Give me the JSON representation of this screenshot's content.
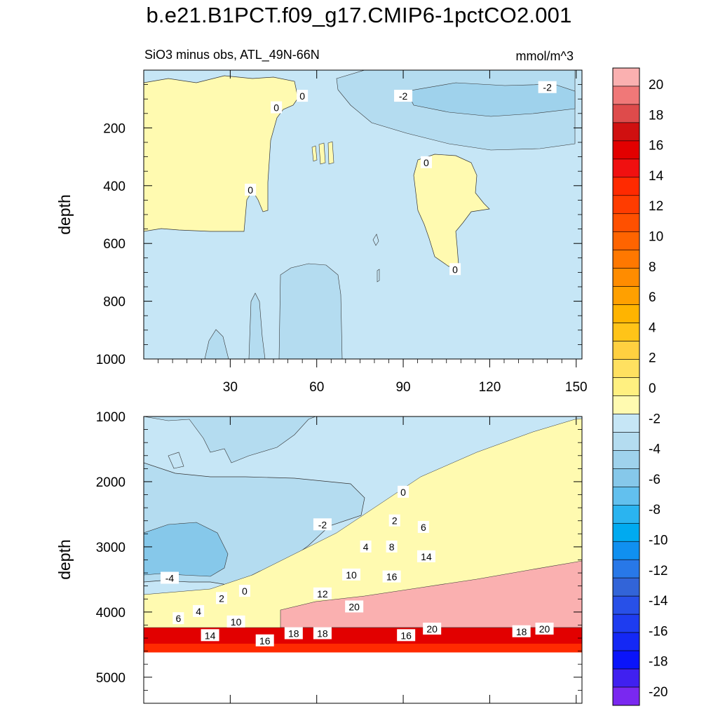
{
  "title": "b.e21.B1PCT.f09_g17.CMIP6-1pctCO2.001",
  "chart_data": [
    {
      "type": "heatmap",
      "panel": "upper",
      "subtitle_left": "SiO3 minus obs, ATL_49N-66N",
      "subtitle_right": "mmol/m^3",
      "ylabel": "depth",
      "xlabel": "",
      "x_range": [
        0,
        152
      ],
      "y_range": [
        0,
        1000
      ],
      "y_reversed": true,
      "x_ticks": [
        30,
        60,
        90,
        120,
        150
      ],
      "y_ticks": [
        200,
        400,
        600,
        800,
        1000
      ],
      "contour_labels": [
        {
          "text": "0",
          "x": 55,
          "y": 90
        },
        {
          "text": "0",
          "x": 46,
          "y": 130
        },
        {
          "text": "-2",
          "x": 90,
          "y": 90
        },
        {
          "text": "-2",
          "x": 140,
          "y": 60
        },
        {
          "text": "0",
          "x": 98,
          "y": 320
        },
        {
          "text": "0",
          "x": 37,
          "y": 415
        },
        {
          "text": "0",
          "x": 108,
          "y": 690
        }
      ]
    },
    {
      "type": "heatmap",
      "panel": "lower",
      "ylabel": "depth",
      "xlabel": "",
      "x_range": [
        0,
        152
      ],
      "y_range": [
        1000,
        5400
      ],
      "y_reversed": true,
      "y_ticks": [
        1000,
        2000,
        3000,
        4000,
        5000
      ],
      "x_ticks_unlabeled": [
        30,
        60,
        90,
        120,
        150
      ],
      "contour_labels": [
        {
          "text": "0",
          "x": 90,
          "y": 2160
        },
        {
          "text": "-2",
          "x": 62,
          "y": 2660
        },
        {
          "text": "2",
          "x": 87,
          "y": 2600
        },
        {
          "text": "6",
          "x": 97,
          "y": 2700
        },
        {
          "text": "4",
          "x": 77,
          "y": 3000
        },
        {
          "text": "8",
          "x": 86,
          "y": 3000
        },
        {
          "text": "14",
          "x": 98,
          "y": 3150
        },
        {
          "text": "10",
          "x": 72,
          "y": 3430
        },
        {
          "text": "16",
          "x": 86,
          "y": 3460
        },
        {
          "text": "-4",
          "x": 9,
          "y": 3480
        },
        {
          "text": "12",
          "x": 62,
          "y": 3720
        },
        {
          "text": "0",
          "x": 35,
          "y": 3680
        },
        {
          "text": "2",
          "x": 27,
          "y": 3790
        },
        {
          "text": "20",
          "x": 73,
          "y": 3920
        },
        {
          "text": "4",
          "x": 19,
          "y": 3990
        },
        {
          "text": "6",
          "x": 12,
          "y": 4100
        },
        {
          "text": "10",
          "x": 32,
          "y": 4150
        },
        {
          "text": "18",
          "x": 52,
          "y": 4330
        },
        {
          "text": "18",
          "x": 62,
          "y": 4330
        },
        {
          "text": "14",
          "x": 23,
          "y": 4360
        },
        {
          "text": "16",
          "x": 42,
          "y": 4440
        },
        {
          "text": "16",
          "x": 91,
          "y": 4360
        },
        {
          "text": "20",
          "x": 100,
          "y": 4260
        },
        {
          "text": "18",
          "x": 131,
          "y": 4300
        },
        {
          "text": "20",
          "x": 139,
          "y": 4260
        }
      ],
      "data_bottom_depth": 4620
    }
  ],
  "colorbar": {
    "labels": [
      "20",
      "18",
      "16",
      "14",
      "12",
      "10",
      "8",
      "6",
      "4",
      "2",
      "0",
      "-2",
      "-4",
      "-6",
      "-8",
      "-10",
      "-12",
      "-14",
      "-16",
      "-18",
      "-20"
    ],
    "colors_top_to_bottom": [
      "#fab0b0",
      "#f07878",
      "#de4b4b",
      "#d01010",
      "#e20000",
      "#f01010",
      "#ff2a00",
      "#ff3c00",
      "#ff5000",
      "#ff6400",
      "#ff7800",
      "#ff8c00",
      "#ffa000",
      "#ffb400",
      "#ffc418",
      "#ffd040",
      "#ffe060",
      "#fff080",
      "#fffab0",
      "#c6e6f6",
      "#b4dcf0",
      "#9fd2ec",
      "#86c8ea",
      "#62c0ee",
      "#2ab4f0",
      "#00aaf0",
      "#1090f0",
      "#2878e8",
      "#3264d8",
      "#2850e8",
      "#1e3cf0",
      "#1428f5",
      "#0a14fa",
      "#4020f0",
      "#7a28f0"
    ]
  }
}
